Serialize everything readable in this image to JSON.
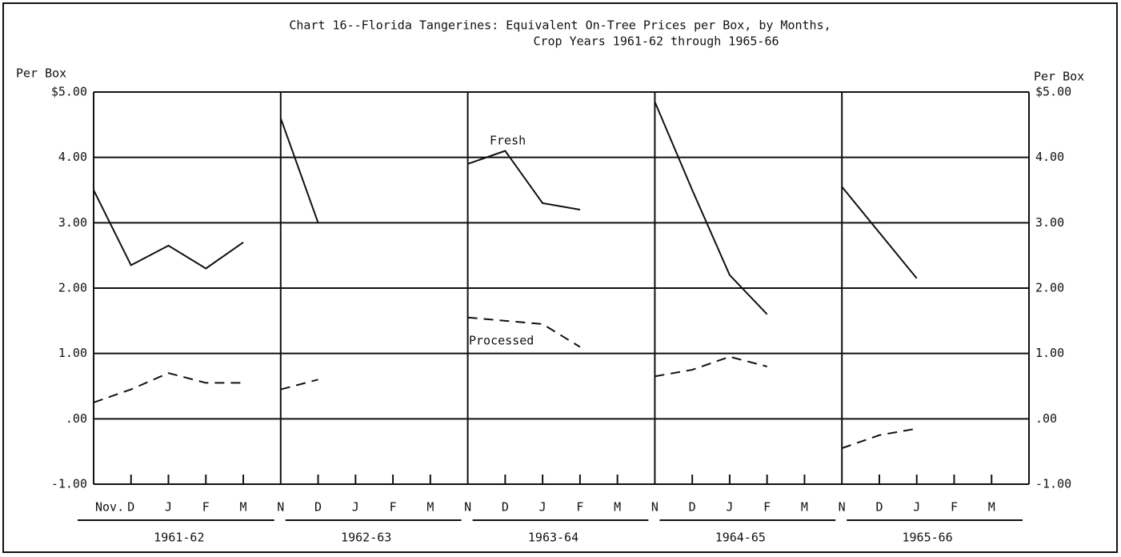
{
  "chart_data": {
    "type": "line",
    "title": "Chart 16--Florida Tangerines:  Equivalent On-Tree Prices per Box, by Months,",
    "subtitle": "Crop Years 1961-62 through 1965-66",
    "ylabel": "Per Box",
    "categories": [
      "Nov.",
      "D",
      "J",
      "F",
      "M",
      "N",
      "D",
      "J",
      "F",
      "M",
      "N",
      "D",
      "J",
      "F",
      "M",
      "N",
      "D",
      "J",
      "F",
      "M",
      "N",
      "D",
      "J",
      "F",
      "M"
    ],
    "groups": [
      "1961-62",
      "1962-63",
      "1963-64",
      "1964-65",
      "1965-66"
    ],
    "series": [
      {
        "name": "Fresh",
        "color": "#111111",
        "style": "solid",
        "values": [
          3.5,
          2.35,
          2.65,
          2.3,
          2.7,
          4.6,
          3.0,
          null,
          null,
          null,
          3.9,
          4.1,
          3.3,
          3.2,
          null,
          4.85,
          3.5,
          2.2,
          1.6,
          null,
          3.55,
          2.85,
          2.15,
          null,
          null
        ]
      },
      {
        "name": "Processed",
        "color": "#111111",
        "style": "dashed",
        "values": [
          0.25,
          0.45,
          0.7,
          0.55,
          0.55,
          0.45,
          0.6,
          null,
          null,
          null,
          1.55,
          1.5,
          1.45,
          1.1,
          null,
          0.65,
          0.75,
          0.95,
          0.8,
          null,
          -0.45,
          -0.25,
          -0.15,
          null,
          null
        ]
      }
    ],
    "ylim": [
      -1,
      5
    ],
    "yticks": [
      {
        "value": -1,
        "label": "-1.00"
      },
      {
        "value": 0,
        "label": ".00"
      },
      {
        "value": 1,
        "label": "1.00"
      },
      {
        "value": 2,
        "label": "2.00"
      },
      {
        "value": 3,
        "label": "3.00"
      },
      {
        "value": 4,
        "label": "4.00"
      },
      {
        "value": 5,
        "label": "$5.00"
      }
    ],
    "grid": true
  }
}
